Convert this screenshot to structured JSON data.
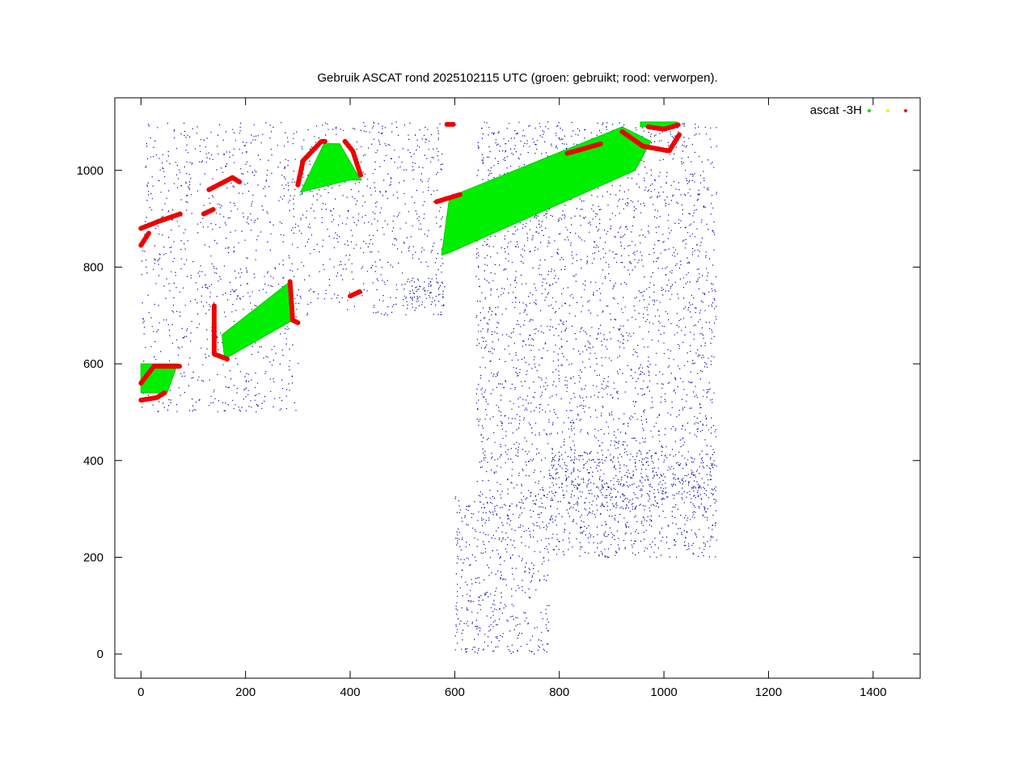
{
  "chart_data": {
    "type": "scatter",
    "title": "Gebruik ASCAT rond 2025102115 UTC (groen: gebruikt; rood: verworpen).",
    "xlabel": "",
    "ylabel": "",
    "xlim": [
      -50,
      1490
    ],
    "ylim": [
      -50,
      1150
    ],
    "xticks": [
      0,
      200,
      400,
      600,
      800,
      1000,
      1200,
      1400
    ],
    "yticks": [
      0,
      200,
      400,
      600,
      800,
      1000
    ],
    "grid": false,
    "legend": {
      "placement": "top-right",
      "label": "ascat -3H",
      "marker_colors": [
        "#00dd00",
        "#eeee00",
        "#ee0000"
      ]
    },
    "colors": {
      "coastline": "#0000a0",
      "used": "#00ee00",
      "rejected": "#ee0000"
    },
    "series": [
      {
        "role": "used",
        "swaths": [
          {
            "corners": [
              [
                155,
                660
              ],
              [
                285,
                770
              ],
              [
                290,
                690
              ],
              [
                160,
                610
              ]
            ]
          },
          {
            "corners": [
              [
                305,
                955
              ],
              [
                350,
                1055
              ],
              [
                380,
                1055
              ],
              [
                420,
                980
              ],
              [
                400,
                980
              ]
            ]
          },
          {
            "corners": [
              [
                575,
                825
              ],
              [
                590,
                945
              ],
              [
                920,
                1090
              ],
              [
                975,
                1060
              ],
              [
                945,
                1000
              ],
              [
                590,
                830
              ]
            ]
          },
          {
            "corners": [
              [
                955,
                1100
              ],
              [
                1025,
                1100
              ],
              [
                1025,
                1090
              ],
              [
                955,
                1090
              ]
            ]
          },
          {
            "corners": [
              [
                0,
                540
              ],
              [
                0,
                600
              ],
              [
                70,
                600
              ],
              [
                50,
                540
              ]
            ]
          }
        ]
      },
      {
        "role": "rejected",
        "segments": [
          [
            [
              140,
              720
            ],
            [
              140,
              620
            ],
            [
              165,
              610
            ]
          ],
          [
            [
              285,
              770
            ],
            [
              290,
              690
            ],
            [
              300,
              685
            ]
          ],
          [
            [
              300,
              970
            ],
            [
              310,
              1020
            ],
            [
              345,
              1060
            ],
            [
              355,
              1060
            ]
          ],
          [
            [
              390,
              1060
            ],
            [
              405,
              1040
            ],
            [
              420,
              990
            ]
          ],
          [
            [
              565,
              935
            ],
            [
              610,
              950
            ]
          ],
          [
            [
              815,
              1035
            ],
            [
              880,
              1055
            ]
          ],
          [
            [
              920,
              1080
            ],
            [
              960,
              1050
            ],
            [
              1010,
              1040
            ],
            [
              1030,
              1075
            ]
          ],
          [
            [
              970,
              1090
            ],
            [
              1000,
              1085
            ],
            [
              1030,
              1095
            ]
          ],
          [
            [
              0,
              880
            ],
            [
              35,
              895
            ],
            [
              75,
              910
            ]
          ],
          [
            [
              0,
              845
            ],
            [
              15,
              870
            ]
          ],
          [
            [
              130,
              960
            ],
            [
              175,
              985
            ],
            [
              190,
              975
            ]
          ],
          [
            [
              120,
              910
            ],
            [
              140,
              920
            ]
          ],
          [
            [
              0,
              560
            ],
            [
              25,
              595
            ],
            [
              75,
              595
            ]
          ],
          [
            [
              0,
              525
            ],
            [
              30,
              530
            ],
            [
              45,
              540
            ]
          ],
          [
            [
              400,
              740
            ],
            [
              420,
              750
            ]
          ],
          [
            [
              585,
              1095
            ],
            [
              600,
              1095
            ]
          ]
        ]
      }
    ]
  }
}
